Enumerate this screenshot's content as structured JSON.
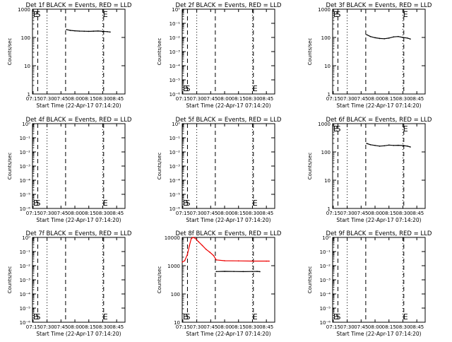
{
  "page": {
    "background": "#ffffff",
    "ink": "#000000",
    "lld_color": "#ee0000"
  },
  "chart_data": [
    {
      "type": "line",
      "detector": "1f",
      "title": "Det 1f BLACK = Events, RED = LLD",
      "ylabel": "Counts/sec",
      "xlabel": "Start Time (22-Apr-17 07:14:20)",
      "log_y": true,
      "ylim": [
        1,
        1000
      ],
      "yticks": [
        1,
        10,
        100,
        1000
      ],
      "ytick_labels": [
        "1",
        "10",
        "100",
        "1000"
      ],
      "xlim": [
        "07:14:20",
        "08:54:00"
      ],
      "xticks": [
        "07:15",
        "07:30",
        "07:45",
        "08:00",
        "08:15",
        "08:30",
        "08:45"
      ],
      "markers": [
        {
          "time": "07:20",
          "label": "S"
        },
        {
          "time": "07:50",
          "label": ""
        },
        {
          "time": "08:31",
          "label": "E"
        }
      ],
      "dotted_lines": [
        "07:30",
        "08:30"
      ],
      "series": [
        {
          "name": "Events",
          "color": "#000000",
          "x": [
            "07:51",
            "07:55",
            "08:00",
            "08:05",
            "08:10",
            "08:15",
            "08:20",
            "08:25",
            "08:30",
            "08:35",
            "08:38"
          ],
          "y": [
            190,
            178,
            172,
            168,
            166,
            164,
            167,
            169,
            164,
            160,
            156
          ]
        }
      ]
    },
    {
      "type": "line",
      "detector": "2f",
      "title": "Det 2f BLACK = Events, RED = LLD",
      "ylabel": "Counts/sec",
      "xlabel": "Start Time (22-Apr-17 07:14:20)",
      "log_y": true,
      "ylim": [
        1e-06,
        1
      ],
      "yticks": [
        1e-06,
        1e-05,
        0.0001,
        0.001,
        0.01,
        0.1,
        1
      ],
      "ytick_labels": [
        "10⁻⁶",
        "10⁻⁵",
        "10⁻⁴",
        "10⁻³",
        "10⁻²",
        "10⁻¹",
        "10⁰"
      ],
      "xlim": [
        "07:14:20",
        "08:54:00"
      ],
      "xticks": [
        "07:15",
        "07:30",
        "07:45",
        "08:00",
        "08:15",
        "08:30",
        "08:45"
      ],
      "markers": [
        {
          "time": "07:20",
          "label": "S"
        },
        {
          "time": "07:50",
          "label": ""
        },
        {
          "time": "08:31",
          "label": "E"
        }
      ],
      "dotted_lines": [
        "07:30",
        "08:30"
      ],
      "series": []
    },
    {
      "type": "line",
      "detector": "3f",
      "title": "Det 3f BLACK = Events, RED = LLD",
      "ylabel": "Counts/sec",
      "xlabel": "Start Time (22-Apr-17 07:14:20)",
      "log_y": true,
      "ylim": [
        1,
        1000
      ],
      "yticks": [
        1,
        10,
        100,
        1000
      ],
      "ytick_labels": [
        "1",
        "10",
        "100",
        "1000"
      ],
      "xlim": [
        "07:14:20",
        "08:54:00"
      ],
      "xticks": [
        "07:15",
        "07:30",
        "07:45",
        "08:00",
        "08:15",
        "08:30",
        "08:45"
      ],
      "markers": [
        {
          "time": "07:20",
          "label": "S"
        },
        {
          "time": "07:50",
          "label": ""
        },
        {
          "time": "08:31",
          "label": "E"
        }
      ],
      "dotted_lines": [
        "07:30",
        "08:30"
      ],
      "series": [
        {
          "name": "Events",
          "color": "#000000",
          "x": [
            "07:51",
            "07:55",
            "08:00",
            "08:05",
            "08:10",
            "08:15",
            "08:20",
            "08:25",
            "08:30",
            "08:35",
            "08:38"
          ],
          "y": [
            125,
            108,
            98,
            92,
            90,
            95,
            105,
            108,
            100,
            95,
            88
          ]
        }
      ]
    },
    {
      "type": "line",
      "detector": "4f",
      "title": "Det 4f BLACK = Events, RED = LLD",
      "ylabel": "Counts/sec",
      "xlabel": "Start Time (22-Apr-17 07:14:20)",
      "log_y": true,
      "ylim": [
        1e-06,
        1
      ],
      "yticks": [
        1e-06,
        1e-05,
        0.0001,
        0.001,
        0.01,
        0.1,
        1
      ],
      "ytick_labels": [
        "10⁻⁶",
        "10⁻⁵",
        "10⁻⁴",
        "10⁻³",
        "10⁻²",
        "10⁻¹",
        "10⁰"
      ],
      "xlim": [
        "07:14:20",
        "08:54:00"
      ],
      "xticks": [
        "07:15",
        "07:30",
        "07:45",
        "08:00",
        "08:15",
        "08:30",
        "08:45"
      ],
      "markers": [
        {
          "time": "07:20",
          "label": "S"
        },
        {
          "time": "07:50",
          "label": ""
        },
        {
          "time": "08:31",
          "label": "E"
        }
      ],
      "dotted_lines": [
        "07:30",
        "08:30"
      ],
      "series": []
    },
    {
      "type": "line",
      "detector": "5f",
      "title": "Det 5f BLACK = Events, RED = LLD",
      "ylabel": "Counts/sec",
      "xlabel": "Start Time (22-Apr-17 07:14:20)",
      "log_y": true,
      "ylim": [
        1e-06,
        1
      ],
      "yticks": [
        1e-06,
        1e-05,
        0.0001,
        0.001,
        0.01,
        0.1,
        1
      ],
      "ytick_labels": [
        "10⁻⁶",
        "10⁻⁵",
        "10⁻⁴",
        "10⁻³",
        "10⁻²",
        "10⁻¹",
        "10⁰"
      ],
      "xlim": [
        "07:14:20",
        "08:54:00"
      ],
      "xticks": [
        "07:15",
        "07:30",
        "07:45",
        "08:00",
        "08:15",
        "08:30",
        "08:45"
      ],
      "markers": [
        {
          "time": "07:20",
          "label": "S"
        },
        {
          "time": "07:50",
          "label": ""
        },
        {
          "time": "08:31",
          "label": "E"
        }
      ],
      "dotted_lines": [
        "07:30",
        "08:30"
      ],
      "series": []
    },
    {
      "type": "line",
      "detector": "6f",
      "title": "Det 6f BLACK = Events, RED = LLD",
      "ylabel": "Counts/sec",
      "xlabel": "Start Time (22-Apr-17 07:14:20)",
      "log_y": true,
      "ylim": [
        1,
        1000
      ],
      "yticks": [
        1,
        10,
        100,
        1000
      ],
      "ytick_labels": [
        "1",
        "10",
        "100",
        "1000"
      ],
      "xlim": [
        "07:14:20",
        "08:54:00"
      ],
      "xticks": [
        "07:15",
        "07:30",
        "07:45",
        "08:00",
        "08:15",
        "08:30",
        "08:45"
      ],
      "markers": [
        {
          "time": "07:20",
          "label": "S"
        },
        {
          "time": "07:50",
          "label": ""
        },
        {
          "time": "08:31",
          "label": "E"
        }
      ],
      "dotted_lines": [
        "07:30",
        "08:30"
      ],
      "series": [
        {
          "name": "Events",
          "color": "#000000",
          "x": [
            "07:51",
            "07:55",
            "08:00",
            "08:05",
            "08:10",
            "08:15",
            "08:20",
            "08:25",
            "08:30",
            "08:35",
            "08:38"
          ],
          "y": [
            200,
            180,
            170,
            160,
            165,
            175,
            170,
            172,
            168,
            160,
            150
          ]
        }
      ]
    },
    {
      "type": "line",
      "detector": "7f",
      "title": "Det 7f BLACK = Events, RED = LLD",
      "ylabel": "Counts/sec",
      "xlabel": "Start Time (22-Apr-17 07:14:20)",
      "log_y": true,
      "ylim": [
        1e-06,
        1
      ],
      "yticks": [
        1e-06,
        1e-05,
        0.0001,
        0.001,
        0.01,
        0.1,
        1
      ],
      "ytick_labels": [
        "10⁻⁶",
        "10⁻⁵",
        "10⁻⁴",
        "10⁻³",
        "10⁻²",
        "10⁻¹",
        "10⁰"
      ],
      "xlim": [
        "07:14:20",
        "08:54:00"
      ],
      "xticks": [
        "07:15",
        "07:30",
        "07:45",
        "08:00",
        "08:15",
        "08:30",
        "08:45"
      ],
      "markers": [
        {
          "time": "07:20",
          "label": "S"
        },
        {
          "time": "07:50",
          "label": ""
        },
        {
          "time": "08:31",
          "label": "E"
        }
      ],
      "dotted_lines": [
        "07:30",
        "08:30"
      ],
      "series": []
    },
    {
      "type": "line",
      "detector": "8f",
      "title": "Det 8f BLACK = Events, RED = LLD",
      "ylabel": "Counts/sec",
      "xlabel": "Start Time (22-Apr-17 07:14:20)",
      "log_y": true,
      "ylim": [
        10,
        10000
      ],
      "yticks": [
        10,
        100,
        1000,
        10000
      ],
      "ytick_labels": [
        "10",
        "100",
        "1000",
        "10000"
      ],
      "xlim": [
        "07:14:20",
        "08:54:00"
      ],
      "xticks": [
        "07:15",
        "07:30",
        "07:45",
        "08:00",
        "08:15",
        "08:30",
        "08:45"
      ],
      "markers": [
        {
          "time": "07:20",
          "label": "S"
        },
        {
          "time": "07:50",
          "label": ""
        },
        {
          "time": "08:31",
          "label": "E"
        }
      ],
      "dotted_lines": [
        "07:30",
        "08:30"
      ],
      "series": [
        {
          "name": "LLD",
          "color": "#ee0000",
          "x": [
            "07:14:30",
            "07:17",
            "07:20",
            "07:22",
            "07:24",
            "07:26",
            "07:28",
            "07:32",
            "07:36",
            "07:40",
            "07:44",
            "07:48",
            "07:51",
            "08:00",
            "08:15",
            "08:30",
            "08:45",
            "08:48"
          ],
          "y": [
            1350,
            1500,
            2500,
            5000,
            9000,
            10000,
            9500,
            7000,
            5200,
            3800,
            3000,
            2300,
            1600,
            1500,
            1480,
            1450,
            1450,
            1450
          ]
        },
        {
          "name": "Events",
          "color": "#000000",
          "x": [
            "07:51",
            "08:00",
            "08:10",
            "08:20",
            "08:30",
            "08:35",
            "08:38"
          ],
          "y": [
            620,
            630,
            625,
            618,
            622,
            628,
            615
          ]
        }
      ]
    },
    {
      "type": "line",
      "detector": "9f",
      "title": "Det 9f BLACK = Events, RED = LLD",
      "ylabel": "Counts/sec",
      "xlabel": "Start Time (22-Apr-17 07:14:20)",
      "log_y": true,
      "ylim": [
        1e-06,
        1
      ],
      "yticks": [
        1e-06,
        1e-05,
        0.0001,
        0.001,
        0.01,
        0.1,
        1
      ],
      "ytick_labels": [
        "10⁻⁶",
        "10⁻⁵",
        "10⁻⁴",
        "10⁻³",
        "10⁻²",
        "10⁻¹",
        "10⁰"
      ],
      "xlim": [
        "07:14:20",
        "08:54:00"
      ],
      "xticks": [
        "07:15",
        "07:30",
        "07:45",
        "08:00",
        "08:15",
        "08:30",
        "08:45"
      ],
      "markers": [
        {
          "time": "07:20",
          "label": "S"
        },
        {
          "time": "07:50",
          "label": ""
        },
        {
          "time": "08:31",
          "label": "E"
        }
      ],
      "dotted_lines": [
        "07:30",
        "08:30"
      ],
      "series": []
    }
  ]
}
